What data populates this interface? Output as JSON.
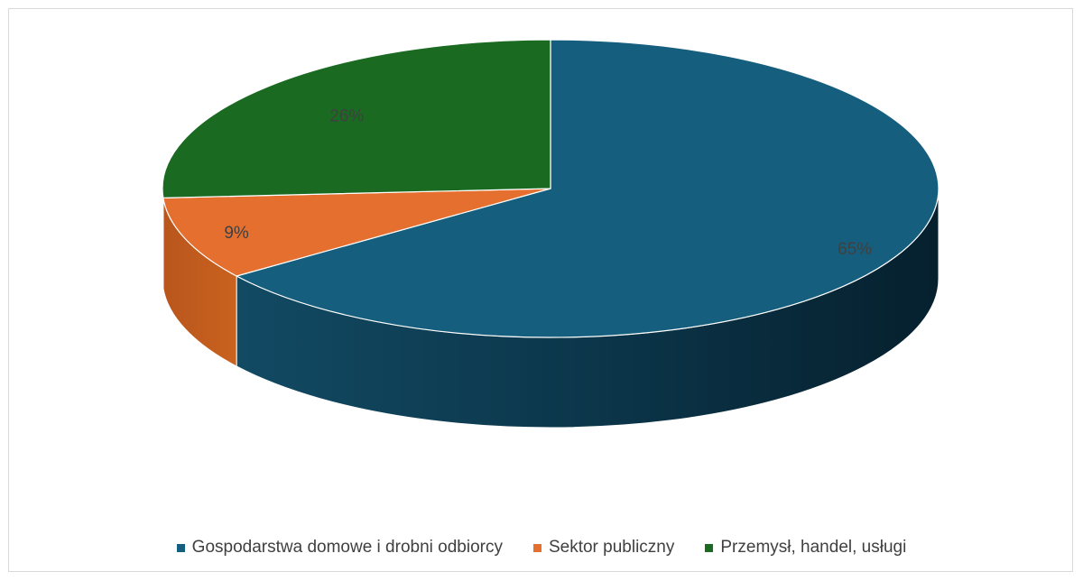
{
  "chart_data": {
    "type": "pie",
    "title": "",
    "categories": [
      "Gospodarstwa domowe i drobni odbiorcy",
      "Sektor publiczny",
      "Przemysł, handel, usługi"
    ],
    "values": [
      65,
      9,
      26
    ],
    "data_labels": [
      "65%",
      "9%",
      "26%"
    ],
    "colors": [
      "#165E7E",
      "#E46F2E",
      "#1A6A22"
    ],
    "legend_position": "bottom",
    "style": "3d"
  }
}
